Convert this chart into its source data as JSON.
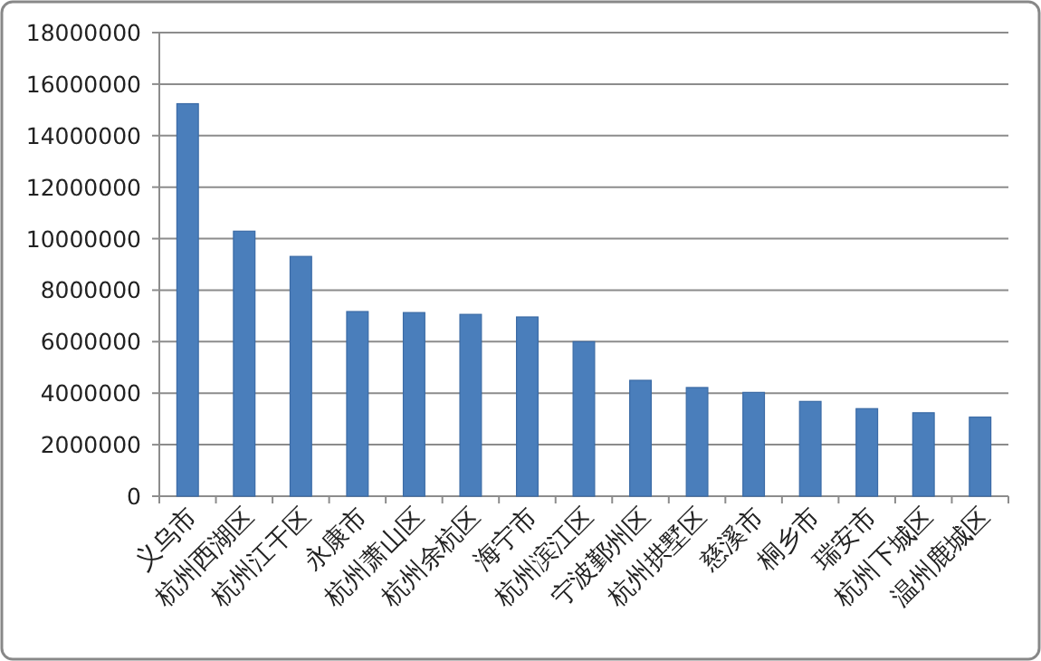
{
  "chart_data": {
    "type": "bar",
    "categories": [
      "义乌市",
      "杭州西湖区",
      "杭州江干区",
      "永康市",
      "杭州萧山区",
      "杭州余杭区",
      "海宁市",
      "杭州滨江区",
      "宁波鄞州区",
      "杭州拱墅区",
      "慈溪市",
      "桐乡市",
      "瑞安市",
      "杭州下城区",
      "温州鹿城区"
    ],
    "values": [
      15240000,
      10290000,
      9310000,
      7170000,
      7130000,
      7060000,
      6960000,
      6000000,
      4500000,
      4220000,
      4030000,
      3680000,
      3400000,
      3240000,
      3070000
    ],
    "color": "#4a7ebb",
    "ylim": [
      0,
      18000000
    ],
    "yticks": [
      0,
      2000000,
      4000000,
      6000000,
      8000000,
      10000000,
      12000000,
      14000000,
      16000000,
      18000000
    ],
    "grid": "y"
  }
}
